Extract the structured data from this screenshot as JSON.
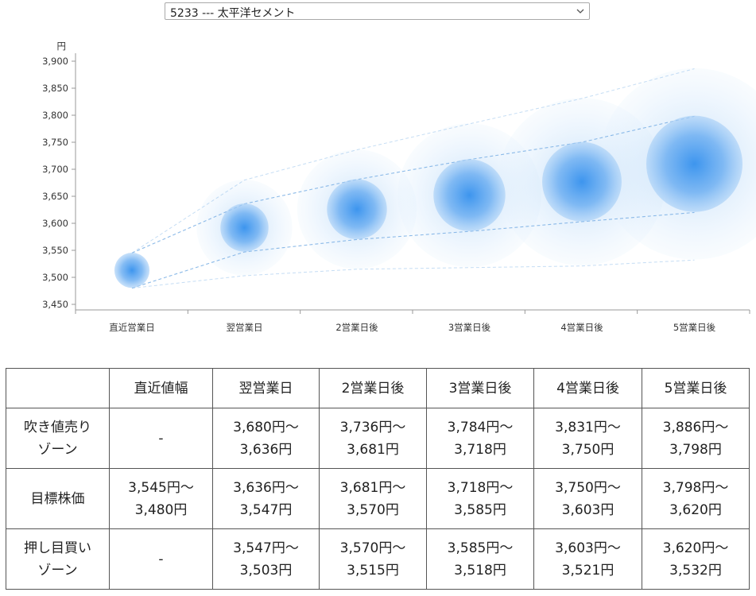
{
  "stock_select": {
    "selected": "5233 --- 太平洋セメント"
  },
  "chart_data": {
    "type": "scatter",
    "y_unit": "円",
    "ylim": [
      3450,
      3900
    ],
    "y_ticks": [
      "3,450",
      "3,500",
      "3,550",
      "3,600",
      "3,650",
      "3,700",
      "3,750",
      "3,800",
      "3,850",
      "3,900"
    ],
    "y_tick_values": [
      3450,
      3500,
      3550,
      3600,
      3650,
      3700,
      3750,
      3800,
      3850,
      3900
    ],
    "categories": [
      "直近営業日",
      "翌営業日",
      "2営業日後",
      "3営業日後",
      "4営業日後",
      "5営業日後"
    ],
    "center_values": [
      3513,
      3592,
      3626,
      3652,
      3677,
      3710
    ],
    "target_upper": [
      3545,
      3636,
      3681,
      3718,
      3750,
      3798
    ],
    "target_lower": [
      3480,
      3547,
      3570,
      3585,
      3603,
      3620
    ],
    "outer_upper": [
      3545,
      3680,
      3736,
      3784,
      3831,
      3886
    ],
    "outer_lower": [
      3480,
      3503,
      3515,
      3518,
      3521,
      3532
    ],
    "grid": false,
    "colors": {
      "bubble": "#3d95ee",
      "line": "#7fb3e6",
      "axis": "#999999"
    }
  },
  "table": {
    "headers": [
      "",
      "直近値幅",
      "翌営業日",
      "2営業日後",
      "3営業日後",
      "4営業日後",
      "5営業日後"
    ],
    "rows": [
      {
        "label_line1": "吹き値売り",
        "label_line2": "ゾーン",
        "cells": [
          {
            "top": "-",
            "bottom": ""
          },
          {
            "top": "3,680円～",
            "bottom": "3,636円"
          },
          {
            "top": "3,736円～",
            "bottom": "3,681円"
          },
          {
            "top": "3,784円～",
            "bottom": "3,718円"
          },
          {
            "top": "3,831円～",
            "bottom": "3,750円"
          },
          {
            "top": "3,886円～",
            "bottom": "3,798円"
          }
        ]
      },
      {
        "label_line1": "目標株価",
        "label_line2": "",
        "cells": [
          {
            "top": "3,545円～",
            "bottom": "3,480円"
          },
          {
            "top": "3,636円～",
            "bottom": "3,547円"
          },
          {
            "top": "3,681円～",
            "bottom": "3,570円"
          },
          {
            "top": "3,718円～",
            "bottom": "3,585円"
          },
          {
            "top": "3,750円～",
            "bottom": "3,603円"
          },
          {
            "top": "3,798円～",
            "bottom": "3,620円"
          }
        ]
      },
      {
        "label_line1": "押し目買い",
        "label_line2": "ゾーン",
        "cells": [
          {
            "top": "-",
            "bottom": ""
          },
          {
            "top": "3,547円～",
            "bottom": "3,503円"
          },
          {
            "top": "3,570円～",
            "bottom": "3,515円"
          },
          {
            "top": "3,585円～",
            "bottom": "3,518円"
          },
          {
            "top": "3,603円～",
            "bottom": "3,521円"
          },
          {
            "top": "3,620円～",
            "bottom": "3,532円"
          }
        ]
      }
    ]
  }
}
